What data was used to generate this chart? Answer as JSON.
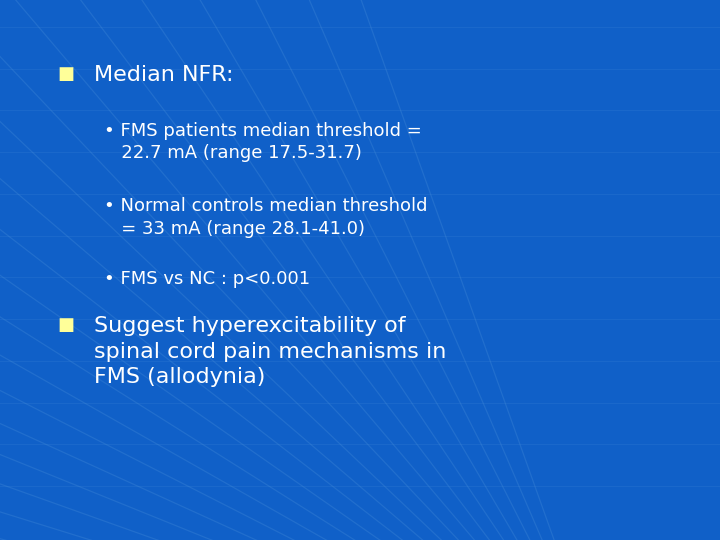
{
  "background_color": "#1060c8",
  "text_color": "#ffffff",
  "bullet_color": "#ffff99",
  "sub_bullet_color": "#ffffff",
  "title_bullet": "■",
  "bullet1_title": "Median NFR:",
  "sub_bullet1": "• FMS patients median threshold =\n   22.7 mA (range 17.5-31.7)",
  "sub_bullet2": "• Normal controls median threshold\n   = 33 mA (range 28.1-41.0)",
  "sub_bullet3": "• FMS vs NC : p<0.001",
  "bullet2_title": "Suggest hyperexcitability of\nspinal cord pain mechanisms in\nFMS (allodynia)",
  "grid_color": "#5599dd",
  "figsize": [
    7.2,
    5.4
  ],
  "dpi": 100
}
